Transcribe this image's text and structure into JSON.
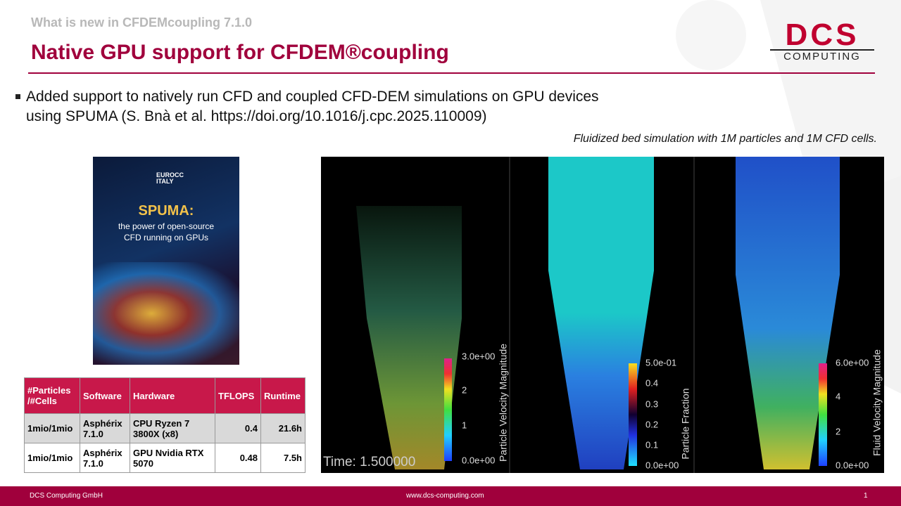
{
  "header": {
    "kicker": "What is new in CFDEMcoupling 7.1.0",
    "title": "Native GPU support for CFDEM®coupling",
    "logo": {
      "top": "DCS",
      "bottom": "COMPUTING"
    }
  },
  "bullet": {
    "lines": [
      "Added support to natively run CFD and coupled CFD-DEM simulations on GPU devices",
      "using SPUMA (S. Bnà et al. https://doi.org/10.1016/j.cpc.2025.110009)"
    ]
  },
  "caption": "Fluidized bed simulation with 1M particles and 1M CFD cells.",
  "cover": {
    "brand": "EUROCC ITALY",
    "title": "SPUMA:",
    "subtitle": [
      "the power of open-source",
      "CFD running on GPUs"
    ]
  },
  "table": {
    "header": [
      "#Particles /#Cells",
      "Software",
      "Hardware",
      "TFLOPS",
      "Runtime"
    ],
    "rows": [
      [
        "1mio/1mio",
        "Asphérix 7.1.0",
        "CPU Ryzen 7 3800X (x8)",
        "0.4",
        "21.6h"
      ],
      [
        "1mio/1mio",
        "Asphérix 7.1.0",
        "GPU Nvidia RTX 5070",
        "0.48",
        "7.5h"
      ]
    ]
  },
  "figure": {
    "time": "Time: 1.500000",
    "panels": [
      {
        "label": "Particle Velocity Magnitude",
        "ticks": [
          "3.0e+00",
          "2",
          "1",
          "0.0e+00"
        ]
      },
      {
        "label": "Particle Fraction",
        "ticks": [
          "5.0e-01",
          "0.4",
          "0.3",
          "0.2",
          "0.1",
          "0.0e+00"
        ]
      },
      {
        "label": "Fluid Velocity Magnitude",
        "ticks": [
          "6.0e+00",
          "4",
          "2",
          "0.0e+00"
        ]
      }
    ]
  },
  "footer": {
    "company": "DCS Computing GmbH",
    "url": "www.dcs-computing.com",
    "page": "1"
  }
}
